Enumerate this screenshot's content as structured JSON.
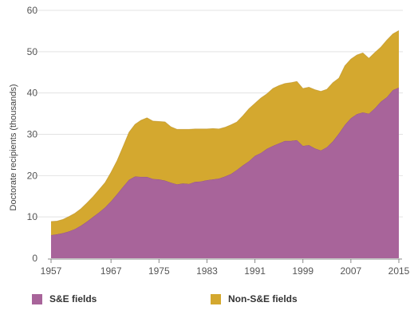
{
  "chart_data": {
    "type": "area",
    "stacked": true,
    "title": "",
    "xlabel": "",
    "ylabel": "Doctorate recipients (thousands)",
    "ylim": [
      0,
      60
    ],
    "xlim": [
      1957,
      2015
    ],
    "grid": true,
    "legend_position": "bottom",
    "yticks": [
      "0",
      "10",
      "20",
      "30",
      "40",
      "50",
      "60"
    ],
    "xticks": [
      "1957",
      "1967",
      "1975",
      "1983",
      "1991",
      "1999",
      "2007",
      "2015"
    ],
    "x": [
      1957,
      1958,
      1959,
      1960,
      1961,
      1962,
      1963,
      1964,
      1965,
      1966,
      1967,
      1968,
      1969,
      1970,
      1971,
      1972,
      1973,
      1974,
      1975,
      1976,
      1977,
      1978,
      1979,
      1980,
      1981,
      1982,
      1983,
      1984,
      1985,
      1986,
      1987,
      1988,
      1989,
      1990,
      1991,
      1992,
      1993,
      1994,
      1995,
      1996,
      1997,
      1998,
      1999,
      2000,
      2001,
      2002,
      2003,
      2004,
      2005,
      2006,
      2007,
      2008,
      2009,
      2010,
      2011,
      2012,
      2013,
      2014,
      2015
    ],
    "series": [
      {
        "name": "S&E fields",
        "color": "#a8649a",
        "values": [
          5.6,
          5.8,
          6.1,
          6.5,
          7.1,
          7.9,
          8.9,
          10.0,
          11.1,
          12.3,
          13.8,
          15.5,
          17.3,
          19.0,
          19.8,
          19.7,
          19.7,
          19.2,
          19.1,
          18.8,
          18.3,
          17.9,
          18.1,
          18.0,
          18.5,
          18.6,
          18.9,
          19.1,
          19.3,
          19.8,
          20.4,
          21.4,
          22.5,
          23.5,
          24.8,
          25.5,
          26.5,
          27.2,
          27.8,
          28.4,
          28.4,
          28.6,
          27.2,
          27.4,
          26.6,
          26.1,
          26.9,
          28.3,
          30.2,
          32.3,
          33.9,
          34.9,
          35.3,
          35.0,
          36.3,
          37.9,
          39.0,
          40.7,
          41.3
        ]
      },
      {
        "name": "Non-S&E fields",
        "color": "#d4a82f",
        "values": [
          3.3,
          3.2,
          3.3,
          3.6,
          3.8,
          4.1,
          4.5,
          4.9,
          5.5,
          6.0,
          7.0,
          8.1,
          9.7,
          11.5,
          12.6,
          13.7,
          14.3,
          14.0,
          14.0,
          14.2,
          13.5,
          13.3,
          13.1,
          13.2,
          12.8,
          12.7,
          12.4,
          12.3,
          12.0,
          11.9,
          11.9,
          11.6,
          12.0,
          12.7,
          12.7,
          13.3,
          13.3,
          13.9,
          14.0,
          13.9,
          14.1,
          14.2,
          13.9,
          14.0,
          14.2,
          14.3,
          14.0,
          14.2,
          13.4,
          14.3,
          14.3,
          14.3,
          14.4,
          13.4,
          13.5,
          13.2,
          13.8,
          13.6,
          13.8
        ]
      }
    ]
  }
}
